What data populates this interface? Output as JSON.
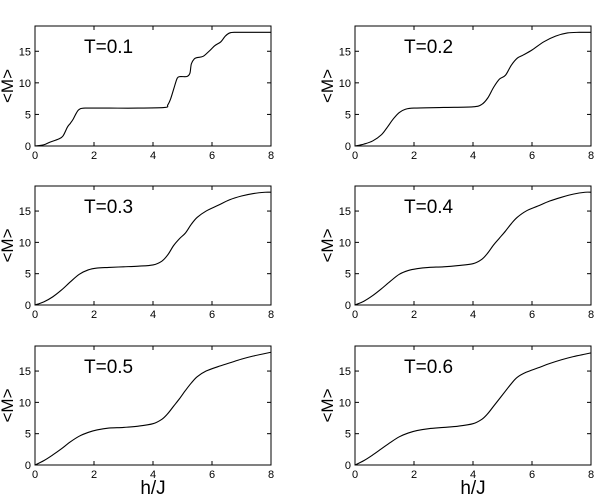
{
  "figure": {
    "xlabel": "h/J",
    "ylabel": "<M>"
  },
  "chart_data": [
    {
      "type": "line",
      "annotation": "T=0.1",
      "xlabel": "",
      "ylabel": "<M>",
      "xlim": [
        0,
        8
      ],
      "ylim": [
        0,
        19
      ],
      "xticks": [
        0,
        2,
        4,
        6,
        8
      ],
      "yticks": [
        0,
        5,
        10,
        15
      ],
      "grid": false,
      "series": [
        {
          "x": [
            0,
            0.3,
            0.5,
            0.8,
            0.95,
            1.1,
            1.2,
            1.3,
            1.4,
            1.5,
            1.7,
            2.5,
            3.5,
            4.4,
            4.5,
            4.6,
            4.7,
            4.8,
            4.85,
            4.95,
            5.15,
            5.25,
            5.3,
            5.4,
            5.5,
            5.7,
            5.9,
            6.1,
            6.3,
            6.45,
            6.6,
            6.8,
            7.2,
            7.6,
            8
          ],
          "y": [
            0,
            0.2,
            0.6,
            1.1,
            1.6,
            3.0,
            3.6,
            4.3,
            5.2,
            5.8,
            6.0,
            6.0,
            6.0,
            6.1,
            6.5,
            7.5,
            9.0,
            10.5,
            10.9,
            11.0,
            11.0,
            11.5,
            13.0,
            13.8,
            14.0,
            14.2,
            15.0,
            15.9,
            16.5,
            17.4,
            17.9,
            18.0,
            18.0,
            18.0,
            18.0
          ]
        }
      ]
    },
    {
      "type": "line",
      "annotation": "T=0.2",
      "xlabel": "",
      "ylabel": "<M>",
      "xlim": [
        0,
        8
      ],
      "ylim": [
        0,
        19
      ],
      "xticks": [
        0,
        2,
        4,
        6,
        8
      ],
      "yticks": [
        0,
        5,
        10,
        15
      ],
      "grid": false,
      "series": [
        {
          "x": [
            0,
            0.3,
            0.6,
            0.9,
            1.1,
            1.3,
            1.5,
            1.7,
            2.0,
            3.0,
            4.0,
            4.3,
            4.5,
            4.7,
            4.9,
            5.1,
            5.3,
            5.5,
            5.7,
            6.0,
            6.4,
            6.8,
            7.2,
            7.6,
            8
          ],
          "y": [
            0,
            0.3,
            0.8,
            1.8,
            3.0,
            4.3,
            5.3,
            5.8,
            6.0,
            6.1,
            6.2,
            6.6,
            7.6,
            9.3,
            10.6,
            11.2,
            12.8,
            13.9,
            14.4,
            15.2,
            16.5,
            17.4,
            17.9,
            18.0,
            18.0
          ]
        }
      ]
    },
    {
      "type": "line",
      "annotation": "T=0.3",
      "xlabel": "",
      "ylabel": "<M>",
      "xlim": [
        0,
        8
      ],
      "ylim": [
        0,
        19
      ],
      "xticks": [
        0,
        2,
        4,
        6,
        8
      ],
      "yticks": [
        0,
        5,
        10,
        15
      ],
      "grid": false,
      "series": [
        {
          "x": [
            0,
            0.3,
            0.6,
            0.9,
            1.2,
            1.5,
            1.8,
            2.1,
            2.5,
            3.0,
            3.5,
            4.0,
            4.3,
            4.5,
            4.7,
            4.9,
            5.1,
            5.3,
            5.5,
            5.8,
            6.2,
            6.6,
            7.0,
            7.4,
            7.8,
            8
          ],
          "y": [
            0,
            0.5,
            1.3,
            2.4,
            3.7,
            4.9,
            5.6,
            5.9,
            6.0,
            6.1,
            6.2,
            6.4,
            7.0,
            8.0,
            9.5,
            10.6,
            11.5,
            12.9,
            14.0,
            15.0,
            15.9,
            16.8,
            17.4,
            17.8,
            18.0,
            18.0
          ]
        }
      ]
    },
    {
      "type": "line",
      "annotation": "T=0.4",
      "xlabel": "",
      "ylabel": "<M>",
      "xlim": [
        0,
        8
      ],
      "ylim": [
        0,
        19
      ],
      "xticks": [
        0,
        2,
        4,
        6,
        8
      ],
      "yticks": [
        0,
        5,
        10,
        15
      ],
      "grid": false,
      "series": [
        {
          "x": [
            0,
            0.3,
            0.6,
            0.9,
            1.2,
            1.5,
            1.8,
            2.1,
            2.5,
            3.0,
            3.5,
            4.0,
            4.3,
            4.5,
            4.7,
            4.9,
            5.1,
            5.3,
            5.5,
            5.8,
            6.2,
            6.6,
            7.0,
            7.4,
            7.8,
            8
          ],
          "y": [
            0,
            0.6,
            1.5,
            2.6,
            3.8,
            4.9,
            5.5,
            5.8,
            6.0,
            6.1,
            6.3,
            6.6,
            7.3,
            8.3,
            9.6,
            10.7,
            11.8,
            13.0,
            14.0,
            15.0,
            15.8,
            16.6,
            17.2,
            17.7,
            18.0,
            18.0
          ]
        }
      ]
    },
    {
      "type": "line",
      "annotation": "T=0.5",
      "xlabel": "h/J",
      "ylabel": "<M>",
      "xlim": [
        0,
        8
      ],
      "ylim": [
        0,
        19
      ],
      "xticks": [
        0,
        2,
        4,
        6,
        8
      ],
      "yticks": [
        0,
        5,
        10,
        15
      ],
      "grid": false,
      "series": [
        {
          "x": [
            0,
            0.3,
            0.6,
            0.9,
            1.2,
            1.5,
            1.8,
            2.1,
            2.5,
            3.0,
            3.5,
            4.0,
            4.3,
            4.5,
            4.7,
            4.9,
            5.1,
            5.3,
            5.5,
            5.8,
            6.2,
            6.6,
            7.0,
            7.4,
            7.8,
            8
          ],
          "y": [
            0,
            0.7,
            1.6,
            2.6,
            3.7,
            4.6,
            5.2,
            5.6,
            5.9,
            6.0,
            6.2,
            6.6,
            7.3,
            8.2,
            9.4,
            10.6,
            11.9,
            13.1,
            14.1,
            15.0,
            15.7,
            16.3,
            16.9,
            17.4,
            17.8,
            18.0
          ]
        }
      ]
    },
    {
      "type": "line",
      "annotation": "T=0.6",
      "xlabel": "h/J",
      "ylabel": "<M>",
      "xlim": [
        0,
        8
      ],
      "ylim": [
        0,
        19
      ],
      "xticks": [
        0,
        2,
        4,
        6,
        8
      ],
      "yticks": [
        0,
        5,
        10,
        15
      ],
      "grid": false,
      "series": [
        {
          "x": [
            0,
            0.3,
            0.6,
            0.9,
            1.2,
            1.5,
            1.8,
            2.1,
            2.5,
            3.0,
            3.5,
            4.0,
            4.3,
            4.5,
            4.7,
            4.9,
            5.1,
            5.3,
            5.5,
            5.8,
            6.2,
            6.6,
            7.0,
            7.4,
            7.8,
            8
          ],
          "y": [
            0,
            0.7,
            1.6,
            2.6,
            3.6,
            4.5,
            5.1,
            5.5,
            5.8,
            6.0,
            6.2,
            6.6,
            7.3,
            8.2,
            9.4,
            10.6,
            11.8,
            13.0,
            14.0,
            14.8,
            15.5,
            16.2,
            16.8,
            17.3,
            17.7,
            17.9
          ]
        }
      ]
    }
  ]
}
